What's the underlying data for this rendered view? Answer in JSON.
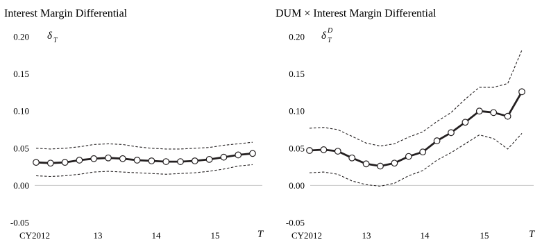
{
  "chart_data": [
    {
      "type": "line",
      "title": "Interest Margin Differential",
      "series_symbol": "δ",
      "series_subscript": "T",
      "series_superscript": "",
      "x_axis_label": "T",
      "x_tick_labels": [
        "CY2012",
        "13",
        "14",
        "15"
      ],
      "y_tick_labels": [
        "0.20",
        "0.15",
        "0.10",
        "0.05",
        "0.00",
        "-0.05"
      ],
      "ylim": [
        -0.05,
        0.2
      ],
      "grid": false,
      "zero_line": true,
      "x": [
        2012.0,
        2012.25,
        2012.5,
        2012.75,
        2013.0,
        2013.25,
        2013.5,
        2013.75,
        2014.0,
        2014.25,
        2014.5,
        2014.75,
        2015.0,
        2015.25,
        2015.5,
        2015.75
      ],
      "series": [
        {
          "role": "estimate",
          "values": [
            0.031,
            0.03,
            0.031,
            0.034,
            0.036,
            0.037,
            0.036,
            0.034,
            0.033,
            0.032,
            0.032,
            0.033,
            0.035,
            0.038,
            0.041,
            0.043
          ]
        },
        {
          "role": "upper-band",
          "values": [
            0.05,
            0.049,
            0.05,
            0.052,
            0.055,
            0.056,
            0.055,
            0.052,
            0.05,
            0.049,
            0.049,
            0.05,
            0.051,
            0.054,
            0.056,
            0.058
          ]
        },
        {
          "role": "lower-band",
          "values": [
            0.013,
            0.012,
            0.013,
            0.015,
            0.018,
            0.019,
            0.018,
            0.017,
            0.016,
            0.015,
            0.016,
            0.017,
            0.019,
            0.022,
            0.026,
            0.028
          ]
        }
      ]
    },
    {
      "type": "line",
      "title": "DUM × Interest Margin Differential",
      "series_symbol": "δ",
      "series_subscript": "T",
      "series_superscript": "D",
      "x_axis_label": "T",
      "x_tick_labels": [
        "CY2012",
        "13",
        "14",
        "15"
      ],
      "y_tick_labels": [
        "0.20",
        "0.15",
        "0.10",
        "0.05",
        "0.00",
        "-0.05"
      ],
      "ylim": [
        -0.05,
        0.2
      ],
      "grid": false,
      "zero_line": true,
      "x": [
        2012.0,
        2012.25,
        2012.5,
        2012.75,
        2013.0,
        2013.25,
        2013.5,
        2013.75,
        2014.0,
        2014.25,
        2014.5,
        2014.75,
        2015.0,
        2015.25,
        2015.5,
        2015.75
      ],
      "series": [
        {
          "role": "estimate",
          "values": [
            0.047,
            0.048,
            0.046,
            0.037,
            0.029,
            0.026,
            0.03,
            0.039,
            0.045,
            0.06,
            0.071,
            0.085,
            0.1,
            0.098,
            0.093,
            0.126
          ]
        },
        {
          "role": "upper-band",
          "values": [
            0.077,
            0.078,
            0.075,
            0.066,
            0.057,
            0.053,
            0.056,
            0.065,
            0.072,
            0.086,
            0.098,
            0.116,
            0.132,
            0.132,
            0.137,
            0.182
          ]
        },
        {
          "role": "lower-band",
          "values": [
            0.017,
            0.018,
            0.015,
            0.006,
            0.001,
            -0.001,
            0.003,
            0.013,
            0.02,
            0.034,
            0.044,
            0.056,
            0.068,
            0.063,
            0.049,
            0.07
          ]
        }
      ]
    }
  ]
}
